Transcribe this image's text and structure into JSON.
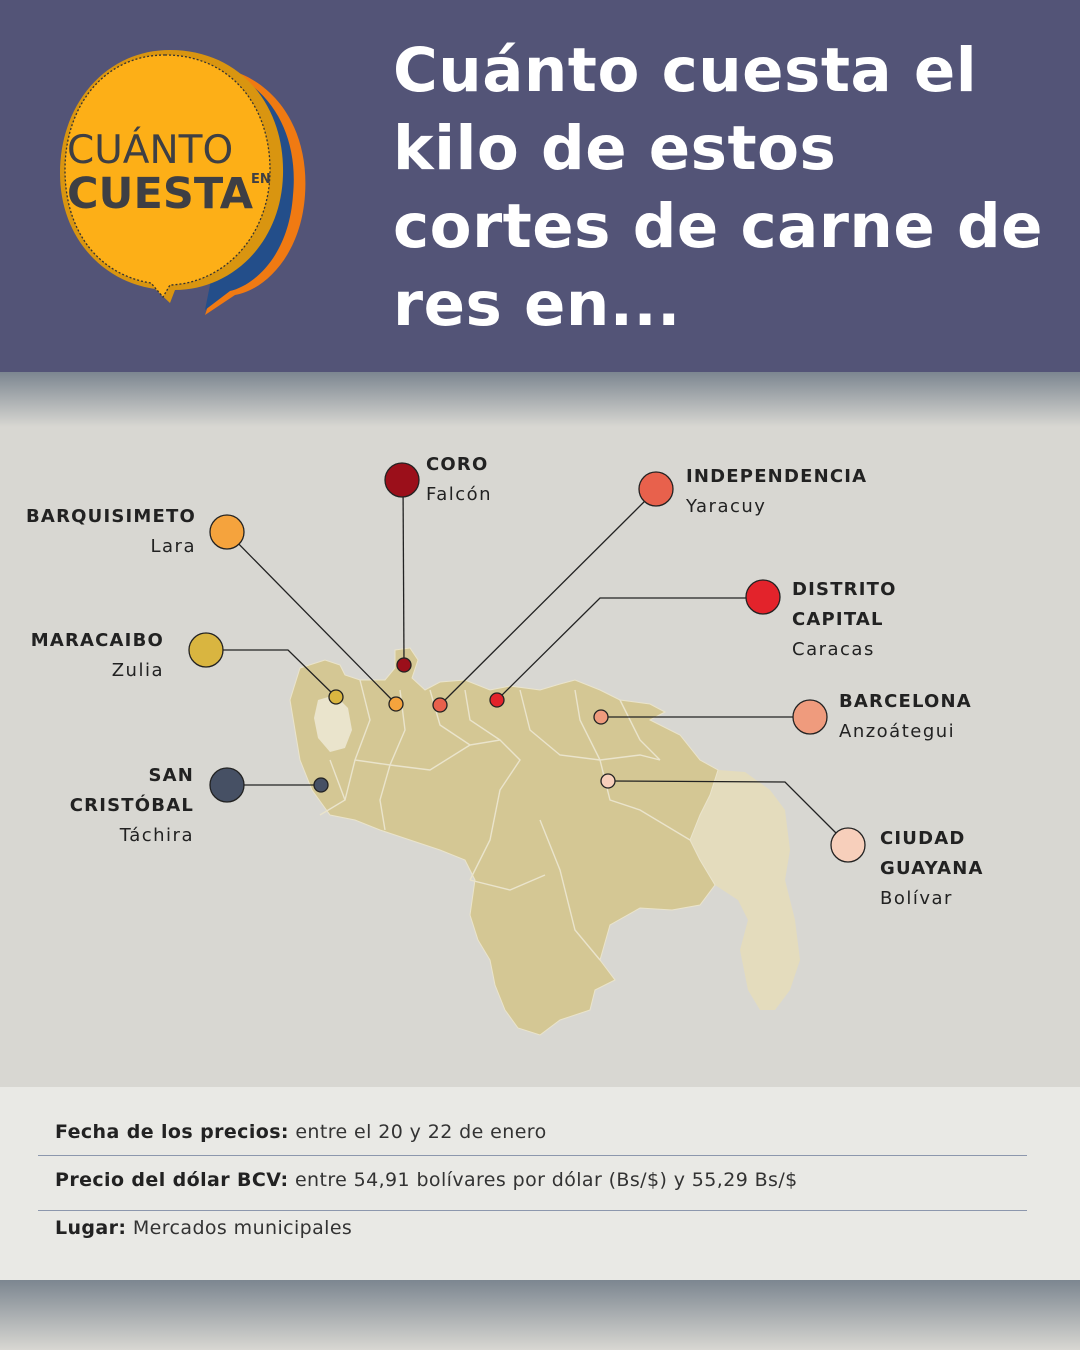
{
  "header": {
    "title": "Cuánto cuesta el kilo de estos cortes de carne de res en...",
    "logo_line1": "CUÁNTO",
    "logo_line2": "CUESTA",
    "logo_small": "EN"
  },
  "locations": [
    {
      "city": "CORO",
      "state": "Falcón",
      "color": "#9b0f1a"
    },
    {
      "city": "INDEPENDENCIA",
      "state": "Yaracuy",
      "color": "#e8614c"
    },
    {
      "city": "BARQUISIMETO",
      "state": "Lara",
      "color": "#f5a33d"
    },
    {
      "city": "DISTRITO CAPITAL",
      "state": "Caracas",
      "color": "#e3232b"
    },
    {
      "city": "MARACAIBO",
      "state": "Zulia",
      "color": "#d9b540"
    },
    {
      "city": "BARCELONA",
      "state": "Anzoátegui",
      "color": "#ef9b7d"
    },
    {
      "city": "SAN CRISTÓBAL",
      "state": "Táchira",
      "color": "#465064"
    },
    {
      "city": "CIUDAD GUAYANA",
      "state": "Bolívar",
      "color": "#f7cfbb"
    }
  ],
  "map_colors": {
    "country": "#d4c794",
    "disputed": "#e4dcbd",
    "borders": "#eae4cc"
  },
  "info": {
    "date_label": "Fecha de los precios:",
    "date_value": " entre el 20 y 22 de enero",
    "dollar_label": "Precio del dólar BCV:",
    "dollar_value": " entre 54,91 bolívares por dólar (Bs/$) y 55,29 Bs/$",
    "place_label": "Lugar:",
    "place_value": " Mercados municipales"
  }
}
